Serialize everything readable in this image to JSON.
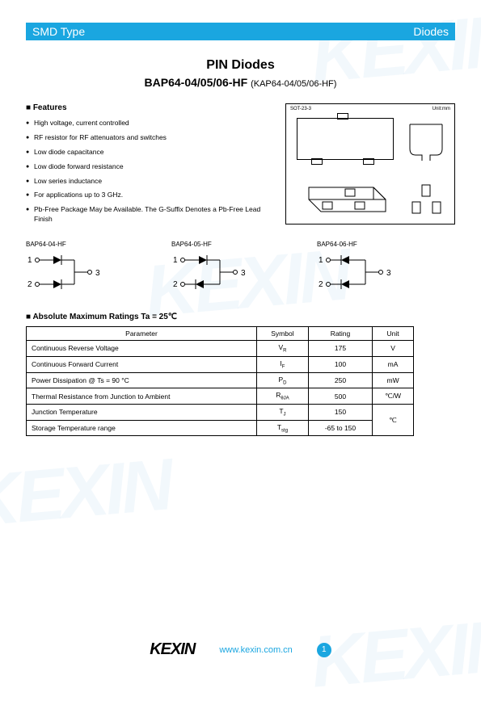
{
  "header": {
    "left": "SMD Type",
    "right": "Diodes"
  },
  "title": {
    "line1": "PIN Diodes",
    "line2_main": "BAP64-04/05/06-HF",
    "line2_sub": "(KAP64-04/05/06-HF)"
  },
  "features": {
    "heading": "Features",
    "items": [
      "High voltage, current controlled",
      "RF resistor for RF attenuators and switches",
      "Low diode capacitance",
      "Low diode forward resistance",
      "Low series inductance",
      "For applications up to 3 GHz.",
      "Pb-Free Package May be Available. The G-Suffix Denotes a Pb-Free Lead Finish"
    ]
  },
  "package_drawing": {
    "label": "SOT-23-3",
    "unit": "Unit:mm"
  },
  "circuits": [
    {
      "label": "BAP64-04-HF",
      "type": "dual-ca"
    },
    {
      "label": "BAP64-05-HF",
      "type": "dual-series"
    },
    {
      "label": "BAP64-06-HF",
      "type": "dual-cc"
    }
  ],
  "ratings": {
    "title": "Absolute Maximum Ratings Ta = 25℃",
    "columns": [
      "Parameter",
      "Symbol",
      "Rating",
      "Unit"
    ],
    "rows": [
      {
        "p": "Continuous Reverse Voltage",
        "s": "V",
        "ss": "R",
        "r": "175",
        "u": "V"
      },
      {
        "p": "Continuous Forward Current",
        "s": "I",
        "ss": "F",
        "r": "100",
        "u": "mA"
      },
      {
        "p": "Power Dissipation @ Ts = 90 °C",
        "s": "P",
        "ss": "D",
        "r": "250",
        "u": "mW"
      },
      {
        "p": "Thermal Resistance from Junction to Ambient",
        "s": "R",
        "ss": "θJA",
        "r": "500",
        "u": "℃/W"
      },
      {
        "p": "Junction Temperature",
        "s": "T",
        "ss": "J",
        "r": "150",
        "u": "℃",
        "merge_unit": true
      },
      {
        "p": "Storage Temperature range",
        "s": "T",
        "ss": "stg",
        "r": "-65 to 150",
        "u": "",
        "merged": true
      }
    ]
  },
  "footer": {
    "brand": "KEXIN",
    "url": "www.kexin.com.cn",
    "page": "1"
  },
  "colors": {
    "accent": "#1aa6e0",
    "text": "#000000",
    "bg": "#ffffff"
  }
}
